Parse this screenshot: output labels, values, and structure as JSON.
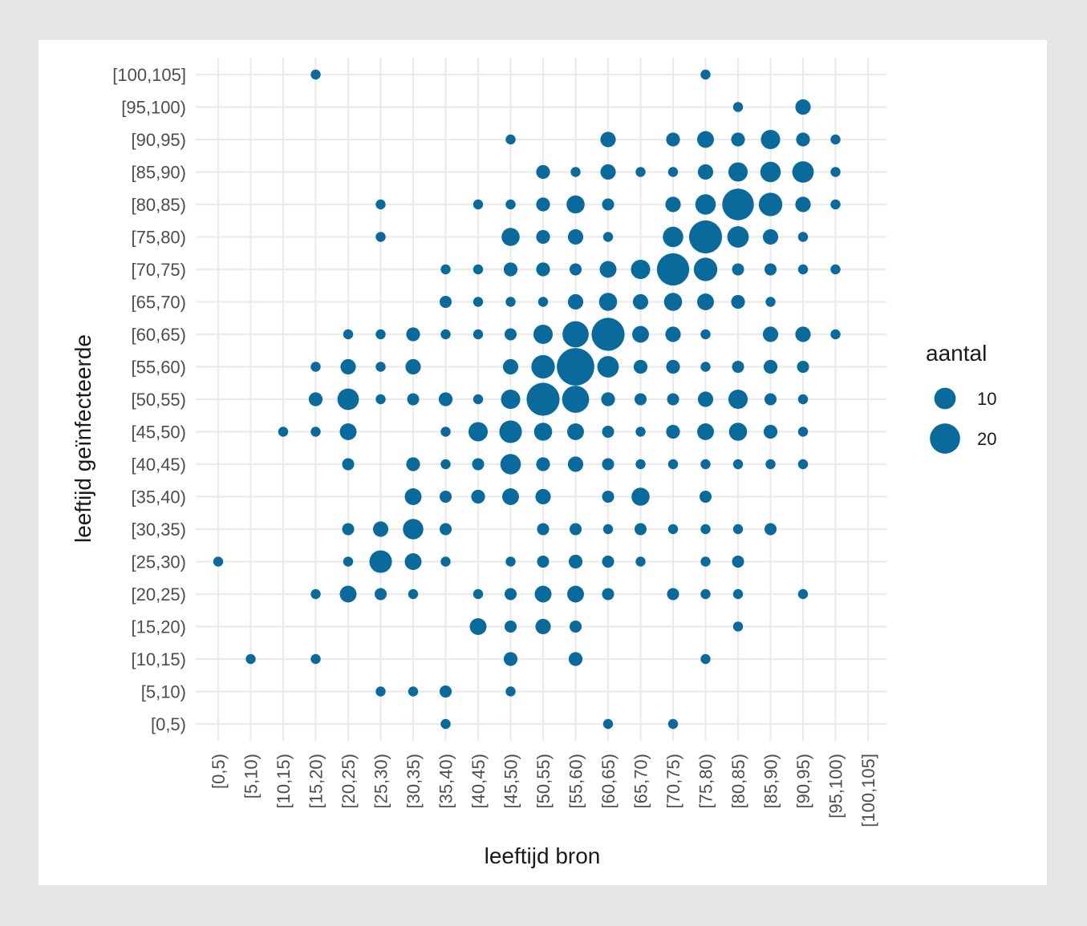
{
  "chart_data": {
    "type": "scatter",
    "xlabel": "leeftijd bron",
    "ylabel": "leeftijd geïnfecteerde",
    "categories": [
      "[0,5)",
      "[5,10)",
      "[10,15)",
      "[15,20)",
      "[20,25)",
      "[25,30)",
      "[30,35)",
      "[35,40)",
      "[40,45)",
      "[45,50)",
      "[50,55)",
      "[55,60)",
      "[60,65)",
      "[65,70)",
      "[70,75)",
      "[75,80)",
      "[80,85)",
      "[85,90)",
      "[90,95)",
      "[95,100)",
      "[100,105]"
    ],
    "x_categories": [
      "[0,5)",
      "[5,10)",
      "[10,15)",
      "[15,20)",
      "[20,25)",
      "[25,30)",
      "[30,35)",
      "[35,40)",
      "[40,45)",
      "[45,50)",
      "[50,55)",
      "[55,60)",
      "[60,65)",
      "[65,70)",
      "[70,75)",
      "[75,80)",
      "[80,85)",
      "[85,90)",
      "[90,95)",
      "[95,100)",
      "[100,105]"
    ],
    "grid": true,
    "point_color": "#0b6a9c",
    "legend": {
      "title": "aantal",
      "position": "right",
      "values": [
        10,
        20
      ],
      "labels": [
        "10",
        "20"
      ]
    },
    "size_range": [
      1,
      25
    ],
    "points": [
      {
        "x": "[15,20)",
        "y": "[100,105]",
        "size": 2
      },
      {
        "x": "[75,80)",
        "y": "[100,105]",
        "size": 2
      },
      {
        "x": "[80,85)",
        "y": "[95,100)",
        "size": 2
      },
      {
        "x": "[90,95)",
        "y": "[95,100)",
        "size": 5
      },
      {
        "x": "[45,50)",
        "y": "[90,95)",
        "size": 2
      },
      {
        "x": "[60,65)",
        "y": "[90,95)",
        "size": 5
      },
      {
        "x": "[70,75)",
        "y": "[90,95)",
        "size": 4
      },
      {
        "x": "[75,80)",
        "y": "[90,95)",
        "size": 6
      },
      {
        "x": "[80,85)",
        "y": "[90,95)",
        "size": 4
      },
      {
        "x": "[85,90)",
        "y": "[90,95)",
        "size": 8
      },
      {
        "x": "[90,95)",
        "y": "[90,95)",
        "size": 4
      },
      {
        "x": "[95,100)",
        "y": "[90,95)",
        "size": 2
      },
      {
        "x": "[50,55)",
        "y": "[85,90)",
        "size": 4
      },
      {
        "x": "[55,60)",
        "y": "[85,90)",
        "size": 2
      },
      {
        "x": "[60,65)",
        "y": "[85,90)",
        "size": 5
      },
      {
        "x": "[65,70)",
        "y": "[85,90)",
        "size": 2
      },
      {
        "x": "[70,75)",
        "y": "[85,90)",
        "size": 2
      },
      {
        "x": "[75,80)",
        "y": "[85,90)",
        "size": 5
      },
      {
        "x": "[80,85)",
        "y": "[85,90)",
        "size": 8
      },
      {
        "x": "[85,90)",
        "y": "[85,90)",
        "size": 9
      },
      {
        "x": "[90,95)",
        "y": "[85,90)",
        "size": 10
      },
      {
        "x": "[95,100)",
        "y": "[85,90)",
        "size": 2
      },
      {
        "x": "[25,30)",
        "y": "[80,85)",
        "size": 2
      },
      {
        "x": "[40,45)",
        "y": "[80,85)",
        "size": 2
      },
      {
        "x": "[45,50)",
        "y": "[80,85)",
        "size": 2
      },
      {
        "x": "[50,55)",
        "y": "[80,85)",
        "size": 4
      },
      {
        "x": "[55,60)",
        "y": "[80,85)",
        "size": 7
      },
      {
        "x": "[60,65)",
        "y": "[80,85)",
        "size": 3
      },
      {
        "x": "[70,75)",
        "y": "[80,85)",
        "size": 5
      },
      {
        "x": "[75,80)",
        "y": "[80,85)",
        "size": 9
      },
      {
        "x": "[80,85)",
        "y": "[80,85)",
        "size": 22
      },
      {
        "x": "[85,90)",
        "y": "[80,85)",
        "size": 12
      },
      {
        "x": "[90,95)",
        "y": "[80,85)",
        "size": 5
      },
      {
        "x": "[95,100)",
        "y": "[80,85)",
        "size": 2
      },
      {
        "x": "[25,30)",
        "y": "[75,80)",
        "size": 2
      },
      {
        "x": "[45,50)",
        "y": "[75,80)",
        "size": 7
      },
      {
        "x": "[50,55)",
        "y": "[75,80)",
        "size": 4
      },
      {
        "x": "[55,60)",
        "y": "[75,80)",
        "size": 5
      },
      {
        "x": "[60,65)",
        "y": "[75,80)",
        "size": 2
      },
      {
        "x": "[70,75)",
        "y": "[75,80)",
        "size": 9
      },
      {
        "x": "[75,80)",
        "y": "[75,80)",
        "size": 24
      },
      {
        "x": "[80,85)",
        "y": "[75,80)",
        "size": 10
      },
      {
        "x": "[85,90)",
        "y": "[75,80)",
        "size": 5
      },
      {
        "x": "[90,95)",
        "y": "[75,80)",
        "size": 2
      },
      {
        "x": "[35,40)",
        "y": "[70,75)",
        "size": 2
      },
      {
        "x": "[40,45)",
        "y": "[70,75)",
        "size": 2
      },
      {
        "x": "[45,50)",
        "y": "[70,75)",
        "size": 4
      },
      {
        "x": "[50,55)",
        "y": "[70,75)",
        "size": 4
      },
      {
        "x": "[55,60)",
        "y": "[70,75)",
        "size": 3
      },
      {
        "x": "[60,65)",
        "y": "[70,75)",
        "size": 6
      },
      {
        "x": "[65,70)",
        "y": "[70,75)",
        "size": 8
      },
      {
        "x": "[70,75)",
        "y": "[70,75)",
        "size": 23
      },
      {
        "x": "[75,80)",
        "y": "[70,75)",
        "size": 12
      },
      {
        "x": "[80,85)",
        "y": "[70,75)",
        "size": 3
      },
      {
        "x": "[85,90)",
        "y": "[70,75)",
        "size": 3
      },
      {
        "x": "[90,95)",
        "y": "[70,75)",
        "size": 2
      },
      {
        "x": "[95,100)",
        "y": "[70,75)",
        "size": 2
      },
      {
        "x": "[35,40)",
        "y": "[65,70)",
        "size": 3
      },
      {
        "x": "[40,45)",
        "y": "[65,70)",
        "size": 2
      },
      {
        "x": "[45,50)",
        "y": "[65,70)",
        "size": 2
      },
      {
        "x": "[50,55)",
        "y": "[65,70)",
        "size": 2
      },
      {
        "x": "[55,60)",
        "y": "[65,70)",
        "size": 5
      },
      {
        "x": "[60,65)",
        "y": "[65,70)",
        "size": 7
      },
      {
        "x": "[65,70)",
        "y": "[65,70)",
        "size": 5
      },
      {
        "x": "[70,75)",
        "y": "[65,70)",
        "size": 7
      },
      {
        "x": "[75,80)",
        "y": "[65,70)",
        "size": 6
      },
      {
        "x": "[80,85)",
        "y": "[65,70)",
        "size": 4
      },
      {
        "x": "[85,90)",
        "y": "[65,70)",
        "size": 2
      },
      {
        "x": "[20,25)",
        "y": "[60,65)",
        "size": 2
      },
      {
        "x": "[25,30)",
        "y": "[60,65)",
        "size": 2
      },
      {
        "x": "[30,35)",
        "y": "[60,65)",
        "size": 4
      },
      {
        "x": "[35,40)",
        "y": "[60,65)",
        "size": 2
      },
      {
        "x": "[40,45)",
        "y": "[60,65)",
        "size": 2
      },
      {
        "x": "[45,50)",
        "y": "[60,65)",
        "size": 3
      },
      {
        "x": "[50,55)",
        "y": "[60,65)",
        "size": 8
      },
      {
        "x": "[55,60)",
        "y": "[60,65)",
        "size": 15
      },
      {
        "x": "[60,65)",
        "y": "[60,65)",
        "size": 24
      },
      {
        "x": "[65,70)",
        "y": "[60,65)",
        "size": 6
      },
      {
        "x": "[70,75)",
        "y": "[60,65)",
        "size": 5
      },
      {
        "x": "[75,80)",
        "y": "[60,65)",
        "size": 2
      },
      {
        "x": "[85,90)",
        "y": "[60,65)",
        "size": 5
      },
      {
        "x": "[90,95)",
        "y": "[60,65)",
        "size": 5
      },
      {
        "x": "[95,100)",
        "y": "[60,65)",
        "size": 2
      },
      {
        "x": "[15,20)",
        "y": "[55,60)",
        "size": 2
      },
      {
        "x": "[20,25)",
        "y": "[55,60)",
        "size": 5
      },
      {
        "x": "[25,30)",
        "y": "[55,60)",
        "size": 2
      },
      {
        "x": "[30,35)",
        "y": "[55,60)",
        "size": 5
      },
      {
        "x": "[45,50)",
        "y": "[55,60)",
        "size": 5
      },
      {
        "x": "[50,55)",
        "y": "[55,60)",
        "size": 12
      },
      {
        "x": "[55,60)",
        "y": "[55,60)",
        "size": 31
      },
      {
        "x": "[60,65)",
        "y": "[55,60)",
        "size": 10
      },
      {
        "x": "[65,70)",
        "y": "[55,60)",
        "size": 4
      },
      {
        "x": "[70,75)",
        "y": "[55,60)",
        "size": 4
      },
      {
        "x": "[75,80)",
        "y": "[55,60)",
        "size": 2
      },
      {
        "x": "[80,85)",
        "y": "[55,60)",
        "size": 3
      },
      {
        "x": "[85,90)",
        "y": "[55,60)",
        "size": 4
      },
      {
        "x": "[90,95)",
        "y": "[55,60)",
        "size": 3
      },
      {
        "x": "[15,20)",
        "y": "[50,55)",
        "size": 4
      },
      {
        "x": "[20,25)",
        "y": "[50,55)",
        "size": 10
      },
      {
        "x": "[25,30)",
        "y": "[50,55)",
        "size": 2
      },
      {
        "x": "[30,35)",
        "y": "[50,55)",
        "size": 3
      },
      {
        "x": "[35,40)",
        "y": "[50,55)",
        "size": 4
      },
      {
        "x": "[40,45)",
        "y": "[50,55)",
        "size": 2
      },
      {
        "x": "[45,50)",
        "y": "[50,55)",
        "size": 8
      },
      {
        "x": "[50,55)",
        "y": "[50,55)",
        "size": 24
      },
      {
        "x": "[55,60)",
        "y": "[50,55)",
        "size": 16
      },
      {
        "x": "[60,65)",
        "y": "[50,55)",
        "size": 4
      },
      {
        "x": "[65,70)",
        "y": "[50,55)",
        "size": 3
      },
      {
        "x": "[70,75)",
        "y": "[50,55)",
        "size": 3
      },
      {
        "x": "[75,80)",
        "y": "[50,55)",
        "size": 5
      },
      {
        "x": "[80,85)",
        "y": "[50,55)",
        "size": 8
      },
      {
        "x": "[85,90)",
        "y": "[50,55)",
        "size": 3
      },
      {
        "x": "[90,95)",
        "y": "[50,55)",
        "size": 2
      },
      {
        "x": "[10,15)",
        "y": "[45,50)",
        "size": 2
      },
      {
        "x": "[15,20)",
        "y": "[45,50)",
        "size": 2
      },
      {
        "x": "[20,25)",
        "y": "[45,50)",
        "size": 6
      },
      {
        "x": "[35,40)",
        "y": "[45,50)",
        "size": 2
      },
      {
        "x": "[40,45)",
        "y": "[45,50)",
        "size": 8
      },
      {
        "x": "[45,50)",
        "y": "[45,50)",
        "size": 11
      },
      {
        "x": "[50,55)",
        "y": "[45,50)",
        "size": 7
      },
      {
        "x": "[55,60)",
        "y": "[45,50)",
        "size": 6
      },
      {
        "x": "[60,65)",
        "y": "[45,50)",
        "size": 3
      },
      {
        "x": "[65,70)",
        "y": "[45,50)",
        "size": 2
      },
      {
        "x": "[70,75)",
        "y": "[45,50)",
        "size": 4
      },
      {
        "x": "[75,80)",
        "y": "[45,50)",
        "size": 6
      },
      {
        "x": "[80,85)",
        "y": "[45,50)",
        "size": 7
      },
      {
        "x": "[85,90)",
        "y": "[45,50)",
        "size": 4
      },
      {
        "x": "[90,95)",
        "y": "[45,50)",
        "size": 2
      },
      {
        "x": "[20,25)",
        "y": "[40,45)",
        "size": 3
      },
      {
        "x": "[30,35)",
        "y": "[40,45)",
        "size": 4
      },
      {
        "x": "[35,40)",
        "y": "[40,45)",
        "size": 2
      },
      {
        "x": "[40,45)",
        "y": "[40,45)",
        "size": 3
      },
      {
        "x": "[45,50)",
        "y": "[40,45)",
        "size": 9
      },
      {
        "x": "[50,55)",
        "y": "[40,45)",
        "size": 4
      },
      {
        "x": "[55,60)",
        "y": "[40,45)",
        "size": 5
      },
      {
        "x": "[60,65)",
        "y": "[40,45)",
        "size": 3
      },
      {
        "x": "[65,70)",
        "y": "[40,45)",
        "size": 2
      },
      {
        "x": "[70,75)",
        "y": "[40,45)",
        "size": 2
      },
      {
        "x": "[75,80)",
        "y": "[40,45)",
        "size": 2
      },
      {
        "x": "[80,85)",
        "y": "[40,45)",
        "size": 2
      },
      {
        "x": "[85,90)",
        "y": "[40,45)",
        "size": 2
      },
      {
        "x": "[90,95)",
        "y": "[40,45)",
        "size": 2
      },
      {
        "x": "[30,35)",
        "y": "[35,40)",
        "size": 6
      },
      {
        "x": "[35,40)",
        "y": "[35,40)",
        "size": 3
      },
      {
        "x": "[40,45)",
        "y": "[35,40)",
        "size": 4
      },
      {
        "x": "[45,50)",
        "y": "[35,40)",
        "size": 6
      },
      {
        "x": "[50,55)",
        "y": "[35,40)",
        "size": 5
      },
      {
        "x": "[60,65)",
        "y": "[35,40)",
        "size": 3
      },
      {
        "x": "[65,70)",
        "y": "[35,40)",
        "size": 7
      },
      {
        "x": "[75,80)",
        "y": "[35,40)",
        "size": 3
      },
      {
        "x": "[20,25)",
        "y": "[30,35)",
        "size": 3
      },
      {
        "x": "[25,30)",
        "y": "[30,35)",
        "size": 5
      },
      {
        "x": "[30,35)",
        "y": "[30,35)",
        "size": 9
      },
      {
        "x": "[35,40)",
        "y": "[30,35)",
        "size": 3
      },
      {
        "x": "[50,55)",
        "y": "[30,35)",
        "size": 3
      },
      {
        "x": "[55,60)",
        "y": "[30,35)",
        "size": 3
      },
      {
        "x": "[60,65)",
        "y": "[30,35)",
        "size": 2
      },
      {
        "x": "[65,70)",
        "y": "[30,35)",
        "size": 3
      },
      {
        "x": "[70,75)",
        "y": "[30,35)",
        "size": 2
      },
      {
        "x": "[75,80)",
        "y": "[30,35)",
        "size": 2
      },
      {
        "x": "[80,85)",
        "y": "[30,35)",
        "size": 2
      },
      {
        "x": "[85,90)",
        "y": "[30,35)",
        "size": 3
      },
      {
        "x": "[0,5)",
        "y": "[25,30)",
        "size": 2
      },
      {
        "x": "[20,25)",
        "y": "[25,30)",
        "size": 2
      },
      {
        "x": "[25,30)",
        "y": "[25,30)",
        "size": 11
      },
      {
        "x": "[30,35)",
        "y": "[25,30)",
        "size": 6
      },
      {
        "x": "[35,40)",
        "y": "[25,30)",
        "size": 2
      },
      {
        "x": "[45,50)",
        "y": "[25,30)",
        "size": 2
      },
      {
        "x": "[50,55)",
        "y": "[25,30)",
        "size": 3
      },
      {
        "x": "[55,60)",
        "y": "[25,30)",
        "size": 4
      },
      {
        "x": "[60,65)",
        "y": "[25,30)",
        "size": 3
      },
      {
        "x": "[65,70)",
        "y": "[25,30)",
        "size": 2
      },
      {
        "x": "[75,80)",
        "y": "[25,30)",
        "size": 2
      },
      {
        "x": "[80,85)",
        "y": "[25,30)",
        "size": 3
      },
      {
        "x": "[15,20)",
        "y": "[20,25)",
        "size": 2
      },
      {
        "x": "[20,25)",
        "y": "[20,25)",
        "size": 6
      },
      {
        "x": "[25,30)",
        "y": "[20,25)",
        "size": 3
      },
      {
        "x": "[30,35)",
        "y": "[20,25)",
        "size": 2
      },
      {
        "x": "[40,45)",
        "y": "[20,25)",
        "size": 2
      },
      {
        "x": "[45,50)",
        "y": "[20,25)",
        "size": 3
      },
      {
        "x": "[50,55)",
        "y": "[20,25)",
        "size": 6
      },
      {
        "x": "[55,60)",
        "y": "[20,25)",
        "size": 6
      },
      {
        "x": "[60,65)",
        "y": "[20,25)",
        "size": 3
      },
      {
        "x": "[70,75)",
        "y": "[20,25)",
        "size": 3
      },
      {
        "x": "[75,80)",
        "y": "[20,25)",
        "size": 2
      },
      {
        "x": "[80,85)",
        "y": "[20,25)",
        "size": 2
      },
      {
        "x": "[90,95)",
        "y": "[20,25)",
        "size": 2
      },
      {
        "x": "[40,45)",
        "y": "[15,20)",
        "size": 6
      },
      {
        "x": "[45,50)",
        "y": "[15,20)",
        "size": 3
      },
      {
        "x": "[50,55)",
        "y": "[15,20)",
        "size": 5
      },
      {
        "x": "[55,60)",
        "y": "[15,20)",
        "size": 3
      },
      {
        "x": "[80,85)",
        "y": "[15,20)",
        "size": 2
      },
      {
        "x": "[5,10)",
        "y": "[10,15)",
        "size": 2
      },
      {
        "x": "[15,20)",
        "y": "[10,15)",
        "size": 2
      },
      {
        "x": "[45,50)",
        "y": "[10,15)",
        "size": 4
      },
      {
        "x": "[55,60)",
        "y": "[10,15)",
        "size": 4
      },
      {
        "x": "[75,80)",
        "y": "[10,15)",
        "size": 2
      },
      {
        "x": "[25,30)",
        "y": "[5,10)",
        "size": 2
      },
      {
        "x": "[30,35)",
        "y": "[5,10)",
        "size": 2
      },
      {
        "x": "[35,40)",
        "y": "[5,10)",
        "size": 3
      },
      {
        "x": "[45,50)",
        "y": "[5,10)",
        "size": 2
      },
      {
        "x": "[35,40)",
        "y": "[0,5)",
        "size": 2
      },
      {
        "x": "[60,65)",
        "y": "[0,5)",
        "size": 2
      },
      {
        "x": "[70,75)",
        "y": "[0,5)",
        "size": 2
      }
    ]
  }
}
